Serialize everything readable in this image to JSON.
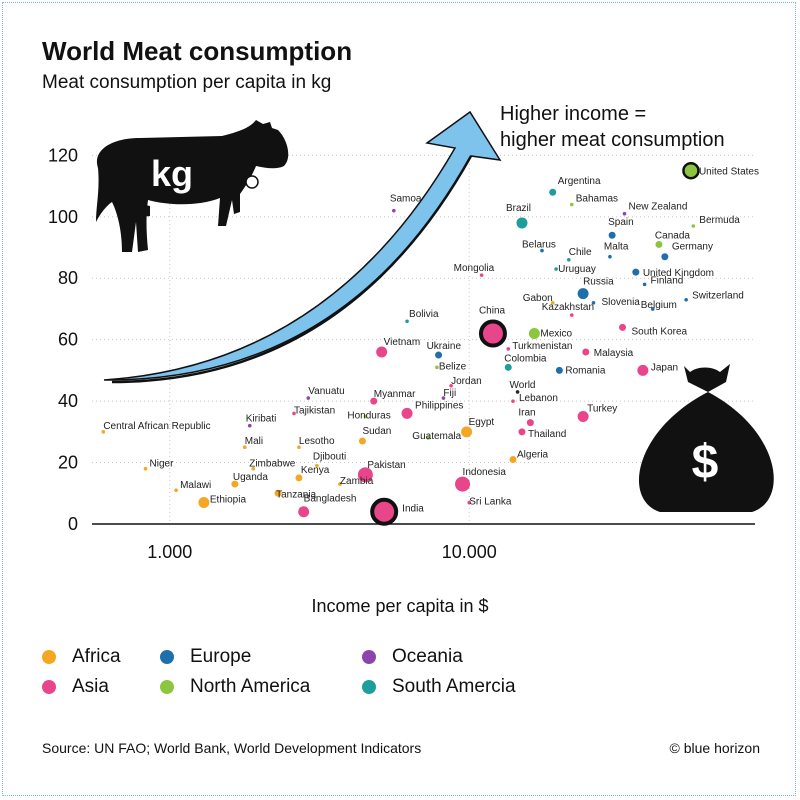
{
  "header": {
    "title": "World Meat consumption",
    "subtitle": "Meat consumption per capita in kg"
  },
  "annotation": {
    "line1": "Higher income =",
    "line2": "higher meat consumption",
    "cow_text": "kg",
    "bag_text": "$"
  },
  "xlabel": "Income per capita in $",
  "footer": {
    "source": "Source: UN FAO; World Bank, World Development Indicators",
    "credit": "© blue horizon"
  },
  "legend": [
    {
      "name": "Africa",
      "color": "#f5a623"
    },
    {
      "name": "Europe",
      "color": "#1f6fad"
    },
    {
      "name": "Oceania",
      "color": "#8e44ad"
    },
    {
      "name": "Asia",
      "color": "#e8458b"
    },
    {
      "name": "North America",
      "color": "#8cc63f"
    },
    {
      "name": "South Amercia",
      "color": "#1e9e9a"
    }
  ],
  "chart_data": {
    "type": "scatter",
    "title": "World Meat consumption",
    "subtitle": "Meat consumption per capita in kg",
    "xlabel": "Income per capita in $",
    "ylabel": "",
    "xscale": "log",
    "xlim": [
      550,
      90000
    ],
    "ylim": [
      0,
      125
    ],
    "xticks": [
      {
        "value": 1000,
        "label": "1.000"
      },
      {
        "value": 10000,
        "label": "10.000"
      }
    ],
    "yticks": [
      0,
      20,
      40,
      60,
      80,
      100,
      120
    ],
    "grid": true,
    "series_colors": {
      "Africa": "#f5a623",
      "Europe": "#1f6fad",
      "Oceania": "#8e44ad",
      "Asia": "#e8458b",
      "North America": "#8cc63f",
      "South Amercia": "#1e9e9a"
    },
    "points": [
      {
        "name": "United States",
        "x": 55000,
        "y": 115,
        "region": "North America",
        "size": "large"
      },
      {
        "name": "Argentina",
        "x": 19000,
        "y": 108,
        "region": "South Amercia",
        "size": "small"
      },
      {
        "name": "Bahamas",
        "x": 22000,
        "y": 104,
        "region": "North America",
        "size": "tiny"
      },
      {
        "name": "New Zealand",
        "x": 33000,
        "y": 101,
        "region": "Oceania",
        "size": "tiny"
      },
      {
        "name": "Bermuda",
        "x": 56000,
        "y": 97,
        "region": "North America",
        "size": "tiny"
      },
      {
        "name": "Samoa",
        "x": 5600,
        "y": 102,
        "region": "Oceania",
        "size": "tiny"
      },
      {
        "name": "Brazil",
        "x": 15000,
        "y": 98,
        "region": "South Amercia",
        "size": "medium"
      },
      {
        "name": "Spain",
        "x": 30000,
        "y": 94,
        "region": "Europe",
        "size": "small"
      },
      {
        "name": "Canada",
        "x": 43000,
        "y": 91,
        "region": "North America",
        "size": "small"
      },
      {
        "name": "Germany",
        "x": 45000,
        "y": 87,
        "region": "Europe",
        "size": "small"
      },
      {
        "name": "Belarus",
        "x": 17500,
        "y": 89,
        "region": "Europe",
        "size": "tiny"
      },
      {
        "name": "Malta",
        "x": 29500,
        "y": 87,
        "region": "Europe",
        "size": "tiny"
      },
      {
        "name": "Chile",
        "x": 21500,
        "y": 86,
        "region": "South Amercia",
        "size": "tiny"
      },
      {
        "name": "Uruguay",
        "x": 19500,
        "y": 83,
        "region": "South Amercia",
        "size": "tiny"
      },
      {
        "name": "United Kingdom",
        "x": 36000,
        "y": 82,
        "region": "Europe",
        "size": "small"
      },
      {
        "name": "Mongolia",
        "x": 11000,
        "y": 81,
        "region": "Asia",
        "size": "tiny"
      },
      {
        "name": "Finland",
        "x": 38500,
        "y": 78,
        "region": "Europe",
        "size": "tiny"
      },
      {
        "name": "Russia",
        "x": 24000,
        "y": 75,
        "region": "Europe",
        "size": "medium"
      },
      {
        "name": "Switzerland",
        "x": 53000,
        "y": 73,
        "region": "Europe",
        "size": "tiny"
      },
      {
        "name": "Gabon",
        "x": 19000,
        "y": 72,
        "region": "Africa",
        "size": "tiny"
      },
      {
        "name": "Slovenia",
        "x": 26000,
        "y": 72,
        "region": "Europe",
        "size": "tiny"
      },
      {
        "name": "Belgium",
        "x": 41000,
        "y": 70,
        "region": "Europe",
        "size": "tiny"
      },
      {
        "name": "Kazakhstan",
        "x": 22000,
        "y": 68,
        "region": "Asia",
        "size": "tiny"
      },
      {
        "name": "Bolivia",
        "x": 6200,
        "y": 66,
        "region": "South Amercia",
        "size": "tiny"
      },
      {
        "name": "South Korea",
        "x": 32500,
        "y": 64,
        "region": "Asia",
        "size": "small"
      },
      {
        "name": "China",
        "x": 12000,
        "y": 62,
        "region": "Asia",
        "size": "huge"
      },
      {
        "name": "Mexico",
        "x": 16500,
        "y": 62,
        "region": "North America",
        "size": "medium"
      },
      {
        "name": "Turkmenistan",
        "x": 13500,
        "y": 57,
        "region": "Asia",
        "size": "tiny"
      },
      {
        "name": "Malaysia",
        "x": 24500,
        "y": 56,
        "region": "Asia",
        "size": "small"
      },
      {
        "name": "Vietnam",
        "x": 5100,
        "y": 56,
        "region": "Asia",
        "size": "medium"
      },
      {
        "name": "Ukraine",
        "x": 7900,
        "y": 55,
        "region": "Europe",
        "size": "small"
      },
      {
        "name": "Belize",
        "x": 7800,
        "y": 51,
        "region": "North America",
        "size": "tiny"
      },
      {
        "name": "Colombia",
        "x": 13500,
        "y": 51,
        "region": "South Amercia",
        "size": "small"
      },
      {
        "name": "Romania",
        "x": 20000,
        "y": 50,
        "region": "Europe",
        "size": "small"
      },
      {
        "name": "Japan",
        "x": 38000,
        "y": 50,
        "region": "Asia",
        "size": "medium"
      },
      {
        "name": "Jordan",
        "x": 8700,
        "y": 45,
        "region": "Asia",
        "size": "tiny"
      },
      {
        "name": "World",
        "x": 14500,
        "y": 43,
        "region": "Other",
        "size": "tiny"
      },
      {
        "name": "Vanuatu",
        "x": 2900,
        "y": 41,
        "region": "Oceania",
        "size": "tiny"
      },
      {
        "name": "Fiji",
        "x": 8200,
        "y": 41,
        "region": "Oceania",
        "size": "tiny"
      },
      {
        "name": "Myanmar",
        "x": 4800,
        "y": 40,
        "region": "Asia",
        "size": "small"
      },
      {
        "name": "Lebanon",
        "x": 14000,
        "y": 40,
        "region": "Asia",
        "size": "tiny"
      },
      {
        "name": "Tajikistan",
        "x": 2600,
        "y": 36,
        "region": "Asia",
        "size": "tiny"
      },
      {
        "name": "Honduras",
        "x": 4500,
        "y": 35,
        "region": "North America",
        "size": "tiny"
      },
      {
        "name": "Philippines",
        "x": 6200,
        "y": 36,
        "region": "Asia",
        "size": "medium"
      },
      {
        "name": "Turkey",
        "x": 24000,
        "y": 35,
        "region": "Asia",
        "size": "medium"
      },
      {
        "name": "Iran",
        "x": 16000,
        "y": 33,
        "region": "Asia",
        "size": "small"
      },
      {
        "name": "Kiribati",
        "x": 1850,
        "y": 32,
        "region": "Oceania",
        "size": "tiny"
      },
      {
        "name": "Central African Republic",
        "x": 600,
        "y": 30,
        "region": "Africa",
        "size": "tiny"
      },
      {
        "name": "Guatemala",
        "x": 7300,
        "y": 28,
        "region": "North America",
        "size": "tiny"
      },
      {
        "name": "Egypt",
        "x": 9800,
        "y": 30,
        "region": "Africa",
        "size": "medium"
      },
      {
        "name": "Thailand",
        "x": 15000,
        "y": 30,
        "region": "Asia",
        "size": "small"
      },
      {
        "name": "Sudan",
        "x": 4400,
        "y": 27,
        "region": "Africa",
        "size": "small"
      },
      {
        "name": "Mali",
        "x": 1780,
        "y": 25,
        "region": "Africa",
        "size": "tiny"
      },
      {
        "name": "Lesotho",
        "x": 2700,
        "y": 25,
        "region": "Africa",
        "size": "tiny"
      },
      {
        "name": "Algeria",
        "x": 14000,
        "y": 21,
        "region": "Africa",
        "size": "small"
      },
      {
        "name": "Zimbabwe",
        "x": 1900,
        "y": 18,
        "region": "Africa",
        "size": "tiny"
      },
      {
        "name": "Djibouti",
        "x": 3100,
        "y": 19,
        "region": "Africa",
        "size": "tiny"
      },
      {
        "name": "Niger",
        "x": 830,
        "y": 18,
        "region": "Africa",
        "size": "tiny"
      },
      {
        "name": "Kenya",
        "x": 2700,
        "y": 15,
        "region": "Africa",
        "size": "small"
      },
      {
        "name": "Pakistan",
        "x": 4500,
        "y": 16,
        "region": "Asia",
        "size": "large"
      },
      {
        "name": "Zambia",
        "x": 3700,
        "y": 13,
        "region": "Africa",
        "size": "tiny"
      },
      {
        "name": "Indonesia",
        "x": 9500,
        "y": 13,
        "region": "Asia",
        "size": "large"
      },
      {
        "name": "Uganda",
        "x": 1650,
        "y": 13,
        "region": "Africa",
        "size": "small"
      },
      {
        "name": "Malawi",
        "x": 1050,
        "y": 11,
        "region": "Africa",
        "size": "tiny"
      },
      {
        "name": "Tanzania",
        "x": 2300,
        "y": 10,
        "region": "Africa",
        "size": "small"
      },
      {
        "name": "Ethiopia",
        "x": 1300,
        "y": 7,
        "region": "Africa",
        "size": "medium"
      },
      {
        "name": "Sri Lanka",
        "x": 10000,
        "y": 7,
        "region": "Asia",
        "size": "tiny"
      },
      {
        "name": "Bangladesh",
        "x": 2800,
        "y": 4,
        "region": "Asia",
        "size": "medium"
      },
      {
        "name": "India",
        "x": 5200,
        "y": 4,
        "region": "Asia",
        "size": "huge"
      }
    ]
  }
}
